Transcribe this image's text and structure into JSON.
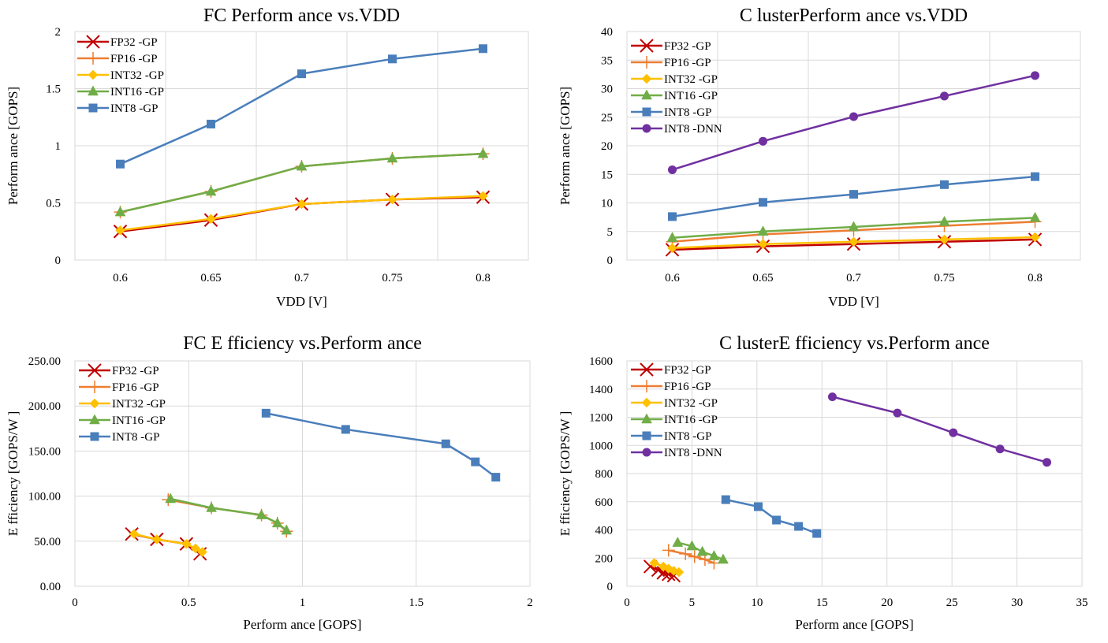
{
  "chart_data": [
    {
      "type": "line",
      "title": "FC Perform ance vs.VDD",
      "xlabel": "VDD [V]",
      "ylabel": "Perform ance [GOPS]",
      "x": [
        0.6,
        0.65,
        0.7,
        0.75,
        0.8
      ],
      "xticks": [
        "0.6",
        "0.65",
        "0.7",
        "0.75",
        "0.8"
      ],
      "yticks": [
        "0",
        "0.5",
        "1",
        "1.5",
        "2"
      ],
      "ylim": [
        0,
        2
      ],
      "grid": true,
      "legend": "top-left",
      "series": [
        {
          "name": "FP32 -GP",
          "color": "#c00000",
          "marker": "x",
          "values": [
            0.25,
            0.35,
            0.49,
            0.53,
            0.55
          ]
        },
        {
          "name": "FP16 -GP",
          "color": "#ed7d31",
          "marker": "plus",
          "values": [
            0.42,
            0.6,
            0.82,
            0.89,
            0.93
          ]
        },
        {
          "name": "INT32 -GP",
          "color": "#ffc000",
          "marker": "diamond",
          "values": [
            0.26,
            0.36,
            0.49,
            0.53,
            0.56
          ]
        },
        {
          "name": "INT16 -GP",
          "color": "#70ad47",
          "marker": "triangle",
          "values": [
            0.42,
            0.6,
            0.82,
            0.89,
            0.93
          ]
        },
        {
          "name": "INT8 -GP",
          "color": "#4a7ebb",
          "marker": "square",
          "values": [
            0.84,
            1.19,
            1.63,
            1.76,
            1.85
          ]
        }
      ]
    },
    {
      "type": "line",
      "title": "C lusterPerform ance vs.VDD",
      "xlabel": "VDD [V]",
      "ylabel": "Perform ance [GOPS]",
      "x": [
        0.6,
        0.65,
        0.7,
        0.75,
        0.8
      ],
      "xticks": [
        "0.6",
        "0.65",
        "0.7",
        "0.75",
        "0.8"
      ],
      "yticks": [
        "0",
        "5",
        "10",
        "15",
        "20",
        "25",
        "30",
        "35",
        "40"
      ],
      "ylim": [
        0,
        40
      ],
      "grid": true,
      "legend": "top-left",
      "series": [
        {
          "name": "FP32 -GP",
          "color": "#c00000",
          "marker": "x",
          "values": [
            1.8,
            2.4,
            2.8,
            3.2,
            3.6
          ]
        },
        {
          "name": "FP16 -GP",
          "color": "#ed7d31",
          "marker": "plus",
          "values": [
            3.2,
            4.5,
            5.2,
            6.0,
            6.7
          ]
        },
        {
          "name": "INT32 -GP",
          "color": "#ffc000",
          "marker": "diamond",
          "values": [
            2.1,
            2.8,
            3.2,
            3.6,
            4.0
          ]
        },
        {
          "name": "INT16 -GP",
          "color": "#70ad47",
          "marker": "triangle",
          "values": [
            3.9,
            5.0,
            5.8,
            6.7,
            7.4
          ]
        },
        {
          "name": "INT8 -GP",
          "color": "#4a7ebb",
          "marker": "square",
          "values": [
            7.6,
            10.1,
            11.5,
            13.2,
            14.6
          ]
        },
        {
          "name": "INT8 -DNN",
          "color": "#7030a0",
          "marker": "circle",
          "values": [
            15.8,
            20.8,
            25.1,
            28.7,
            32.3
          ]
        }
      ]
    },
    {
      "type": "scatter",
      "title": "FC E fficiency vs.Perform ance",
      "xlabel": "Perform ance [GOPS]",
      "ylabel": "E fficiency [GOPS/W ]",
      "xticks": [
        "0",
        "0.5",
        "1",
        "1.5",
        "2"
      ],
      "xlim": [
        0,
        2
      ],
      "yticks": [
        "0.00",
        "50.00",
        "100.00",
        "150.00",
        "200.00",
        "250.00"
      ],
      "ylim": [
        0,
        250
      ],
      "grid": true,
      "legend": "top-left",
      "series": [
        {
          "name": "FP32 -GP",
          "color": "#c00000",
          "marker": "x",
          "x": [
            0.25,
            0.36,
            0.49,
            0.55
          ],
          "y": [
            58,
            52,
            47,
            36
          ]
        },
        {
          "name": "FP16 -GP",
          "color": "#ed7d31",
          "marker": "plus",
          "x": [
            0.41,
            0.6,
            0.82,
            0.89,
            0.93
          ],
          "y": [
            96,
            87,
            79,
            70,
            61
          ]
        },
        {
          "name": "INT32 -GP",
          "color": "#ffc000",
          "marker": "diamond",
          "x": [
            0.26,
            0.36,
            0.49,
            0.53,
            0.56
          ],
          "y": [
            58,
            52,
            47,
            42,
            38
          ]
        },
        {
          "name": "INT16 -GP",
          "color": "#70ad47",
          "marker": "triangle",
          "x": [
            0.42,
            0.6,
            0.82,
            0.89,
            0.93
          ],
          "y": [
            97,
            87,
            79,
            70,
            62
          ]
        },
        {
          "name": "INT8 -GP",
          "color": "#4a7ebb",
          "marker": "square",
          "x": [
            0.84,
            1.19,
            1.63,
            1.76,
            1.85
          ],
          "y": [
            192,
            174,
            158,
            138,
            121
          ]
        }
      ]
    },
    {
      "type": "scatter",
      "title": "C lusterE fficiency vs.Perform ance",
      "xlabel": "Perform ance [GOPS]",
      "ylabel": "E fficiency [GOPS/W ]",
      "xticks": [
        "0",
        "5",
        "10",
        "15",
        "20",
        "25",
        "30",
        "35"
      ],
      "xlim": [
        0,
        35
      ],
      "yticks": [
        "0",
        "200",
        "400",
        "600",
        "800",
        "1000",
        "1200",
        "1400",
        "1600"
      ],
      "ylim": [
        0,
        1600
      ],
      "grid": true,
      "legend": "top-left",
      "series": [
        {
          "name": "FP32 -GP",
          "color": "#c00000",
          "marker": "x",
          "x": [
            1.8,
            2.4,
            2.8,
            3.2,
            3.6
          ],
          "y": [
            140,
            115,
            95,
            85,
            75
          ]
        },
        {
          "name": "FP16 -GP",
          "color": "#ed7d31",
          "marker": "plus",
          "x": [
            3.2,
            4.5,
            5.2,
            6.0,
            6.7
          ],
          "y": [
            255,
            230,
            210,
            190,
            165
          ]
        },
        {
          "name": "INT32 -GP",
          "color": "#ffc000",
          "marker": "diamond",
          "x": [
            2.1,
            2.8,
            3.2,
            3.6,
            4.0
          ],
          "y": [
            165,
            140,
            125,
            110,
            100
          ]
        },
        {
          "name": "INT16 -GP",
          "color": "#70ad47",
          "marker": "triangle",
          "x": [
            3.9,
            5.0,
            5.8,
            6.7,
            7.4
          ],
          "y": [
            310,
            285,
            245,
            215,
            190
          ]
        },
        {
          "name": "INT8 -GP",
          "color": "#4a7ebb",
          "marker": "square",
          "x": [
            7.6,
            10.1,
            11.5,
            13.2,
            14.6
          ],
          "y": [
            615,
            565,
            470,
            425,
            375
          ]
        },
        {
          "name": "INT8 -DNN",
          "color": "#7030a0",
          "marker": "circle",
          "x": [
            15.8,
            20.8,
            25.1,
            28.7,
            32.3
          ],
          "y": [
            1345,
            1230,
            1090,
            975,
            880
          ]
        }
      ]
    }
  ]
}
